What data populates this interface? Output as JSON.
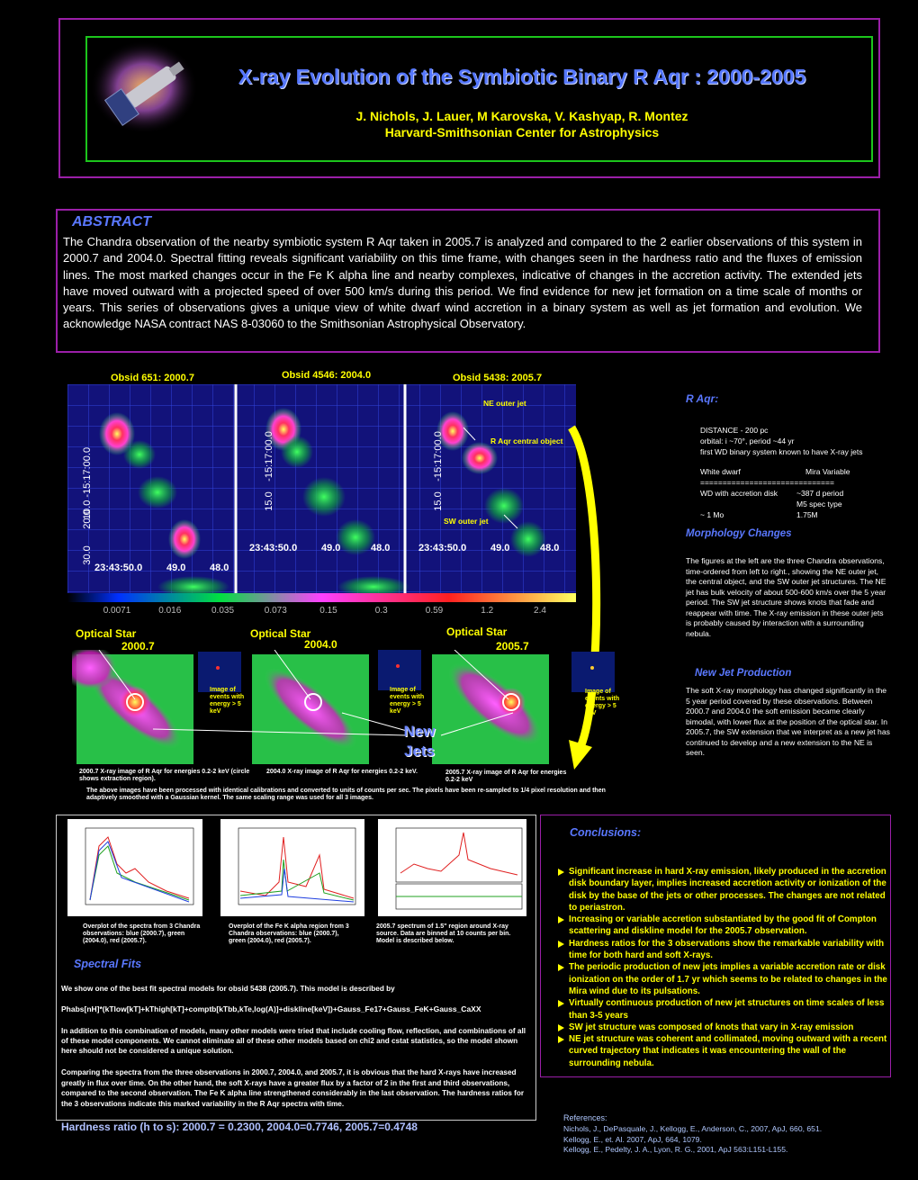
{
  "header": {
    "title": "X-ray Evolution of the Symbiotic Binary R Aqr : 2000-2005",
    "authors": "J. Nichols, J. Lauer, M Karovska, V. Kashyap, R. Montez",
    "institution": "Harvard-Smithsonian Center for Astrophysics"
  },
  "abstract": {
    "heading": "ABSTRACT",
    "text": "The Chandra observation of  the nearby symbiotic system R Aqr taken in 2005.7 is analyzed and compared to the 2 earlier observations of this system in 2000.7 and 2004.0.  Spectral fitting reveals significant variability on this time frame, with changes seen in the hardness ratio and the fluxes of emission lines. The most marked changes occur in the Fe K alpha line and nearby complexes, indicative of changes in the accretion activity.  The extended jets have moved outward with a projected speed of over 500 km/s during this period.  We find evidence for new jet formation on a time scale of months or years.  This series of observations gives a unique view of white dwarf wind  accretion in a binary system as well as jet formation and evolution. We acknowledge NASA contract NAS 8-03060 to the Smithsonian Astrophysical Observatory."
  },
  "xray_images": {
    "panel_titles": [
      "Obsid 651: 2000.7",
      "Obsid 4546: 2004.0",
      "Obsid 5438: 2005.7"
    ],
    "annotations": [
      "NE outer jet",
      "R Aqr central object",
      "SW outer jet"
    ],
    "vertical_labels": [
      [
        "10.0 -15:17:00.0",
        "20.0",
        "30.0"
      ],
      [
        "-15:17:00.0",
        "15.0"
      ],
      [
        "-15:17:00.0",
        "15.0"
      ]
    ],
    "bottom_labels": [
      [
        "23:43:50.0",
        "49.0",
        "48.0"
      ],
      [
        "23:43:50.0",
        "49.0",
        "48.0"
      ],
      [
        "23:43:50.0",
        "49.0",
        "48.0"
      ]
    ],
    "colorbar_ticks": [
      "0.0071",
      "0.016",
      "0.035",
      "0.073",
      "0.15",
      "0.3",
      "0.59",
      "1.2",
      "2.4"
    ]
  },
  "r_aqr": {
    "heading": "R Aqr:",
    "facts": [
      "DISTANCE - 200 pc",
      "orbital: i ~70°, period ~44 yr",
      "first WD binary system known to have X-ray jets"
    ],
    "left_column": [
      "White dwarf",
      "WD with accretion disk",
      "~ 1 Mo"
    ],
    "right_column": [
      "Mira Variable",
      "~387 d period",
      "M5 spec type",
      "1.75M"
    ],
    "separator": "=============================="
  },
  "morphology": {
    "heading": "Morphology Changes",
    "text": "The figures at the left are the three Chandra observations, time-ordered from left to right., showing the NE outer jet, the central object, and the SW outer jet structures.  The NE jet has bulk velocity of about 500-600 km/s over the 5 year period.  The SW jet structure shows knots that fade and reappear with time.  The X-ray emission in these outer jets is probably caused by interaction with a surrounding nebula."
  },
  "new_jets": {
    "heading": "New Jet Production",
    "text": "The soft X-ray morphology has changed significantly in the 5 year period covered by these observations.  Between 2000.7 and 2004.0  the soft emission became clearly bimodal, with lower flux at the position of the optical star.  In 2005.7, the SW extension that we interpret as a new jet has continued to develop and a new extension to the NE is seen."
  },
  "optical_images": {
    "star_labels": [
      "Optical Star",
      "Optical Star",
      "Optical Star"
    ],
    "years": [
      "2000.7",
      "2004.0",
      "2005.7"
    ],
    "inset_captions": [
      "Image of events with energy > 5 keV",
      "Image of events with energy > 5 keV",
      "Image of events with energy > 5 keV"
    ],
    "new_jets_label": [
      "New",
      "Jets"
    ],
    "captions": [
      "2000.7 X-ray image of R Aqr for energies 0.2-2 keV (circle shows extraction region).",
      "2004.0 X-ray image of R Aqr for energies 0.2-2 keV.",
      "2005.7 X-ray image of R Aqr for energies 0.2-2 keV"
    ],
    "note": "The above images have been processed with identical calibrations and converted to units of counts per sec. The pixels have been re-sampled to 1/4 pixel resolution and then adaptively smoothed with a Gaussian kernel. The same scaling range was used for all 3 images."
  },
  "spectra": {
    "captions": [
      "Overplot of the spectra from 3 Chandra observations: blue (2000.7), green (2004.0), red (2005.7).",
      "Overplot of the Fe K alpha region from 3 Chandra observations: blue (2000.7), green (2004.0), red (2005.7).",
      "2005.7 spectrum of 1.5\" region around X-ray source.  Data are binned at 10 counts per bin. Model is described below."
    ]
  },
  "spectral_fits": {
    "heading": "Spectral Fits",
    "intro": "We show one of the best fit spectral models for obsid 5438 (2005.7).  This model is described by",
    "model": "Phabs[nH]*(kTlow[kT]+kThigh[kT]+comptb[kTbb,kTe,log(A)]+diskline[keV])+Gauss_Fe17+Gauss_FeK+Gauss_CaXX",
    "other_models": "In addition to this combination of models, many other models were tried that include cooling flow, reflection, and combinations of all of these model components.  We cannot eliminate all of these other models based on chi2 and cstat statistics, so the model shown here should not be considered a unique solution.",
    "comparison": "Comparing the spectra from the three observations in 2000.7, 2004.0, and 2005.7, it is obvious that the hard X-rays have increased greatly in flux over time.  On the other hand, the soft X-rays have a greater flux by a factor of 2 in the first and third observations, compared to the second observation.  The Fe K alpha line strengthened considerably in the last observation.  The hardness ratios for the 3 observations indicate this marked variability in the R Aqr spectra with time.",
    "hardness": "Hardness ratio (h to s): 2000.7 = 0.2300, 2004.0=0.7746, 2005.7=0.4748"
  },
  "conclusions": {
    "heading": "Conclusions:",
    "items": [
      "Significant increase in hard X-ray emission, likely produced in the accretion disk boundary layer, implies increased accretion activity or ionization of the disk by the base of the jets or other processes.  The changes are not related to periastron.",
      "Increasing or variable accretion substantiated by the good fit of Compton scattering and diskline model for the 2005.7 observation.",
      "Hardness ratios for the 3 observations show the remarkable variability with time for both hard and soft X-rays.",
      "The periodic production of new jets implies a variable accretion rate or disk ionization on the order of 1.7 yr which seems to be related to changes in the Mira wind due to its pulsations.",
      "Virtually continuous production of new jet structures on time scales of less than 3-5 years",
      "SW jet structure was composed of knots that vary in X-ray emission",
      "NE jet structure was coherent and collimated, moving outward with a recent curved trajectory that indicates it was encountering the wall of the surrounding nebula."
    ]
  },
  "references": {
    "heading": "References:",
    "items": [
      "Nichols, J., DePasquale, J., Kellogg, E., Anderson, C., 2007, ApJ, 660, 651.",
      "Kellogg, E., et. Al. 2007, ApJ, 664, 1079.",
      "Kellogg, E., Pedelty, J. A., Lyon, R. G., 2001, ApJ 563:L151-L155."
    ]
  }
}
